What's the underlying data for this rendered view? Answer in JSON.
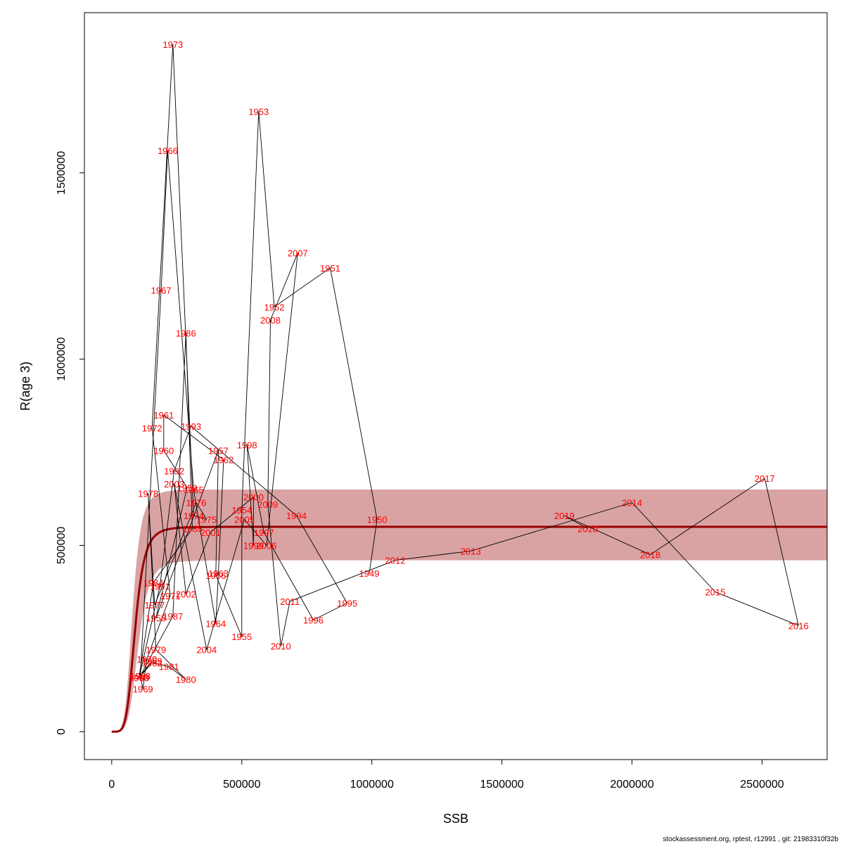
{
  "chart_data": {
    "type": "scatter",
    "title": "",
    "xlabel": "SSB",
    "ylabel": "R(age 3)",
    "xlim": [
      -105000,
      2750000
    ],
    "ylim": [
      -75000,
      1930000
    ],
    "xticks": [
      0,
      500000,
      1000000,
      1500000,
      2000000,
      2500000
    ],
    "yticks": [
      0,
      500000,
      1000000,
      1500000
    ],
    "xtick_labels": [
      "0",
      "500000",
      "1000000",
      "1500000",
      "2000000",
      "2500000"
    ],
    "ytick_labels": [
      "0",
      "500000",
      "1000000",
      "1500000"
    ],
    "grid": false,
    "legend": "none",
    "colors": {
      "points": "#ff0000",
      "path": "#000000",
      "fit": "#990000",
      "band": "#d9a3a3"
    },
    "points": [
      {
        "year": "1949",
        "x": 990000,
        "y": 425000
      },
      {
        "year": "1950",
        "x": 1020000,
        "y": 570000
      },
      {
        "year": "1951",
        "x": 840000,
        "y": 1245000
      },
      {
        "year": "1952",
        "x": 625000,
        "y": 1140000
      },
      {
        "year": "1953",
        "x": 565000,
        "y": 1665000
      },
      {
        "year": "1954",
        "x": 500000,
        "y": 595000
      },
      {
        "year": "1955",
        "x": 500000,
        "y": 255000
      },
      {
        "year": "1956",
        "x": 400000,
        "y": 420000
      },
      {
        "year": "1957",
        "x": 410000,
        "y": 755000
      },
      {
        "year": "1958",
        "x": 170000,
        "y": 305000
      },
      {
        "year": "1959",
        "x": 290000,
        "y": 655000
      },
      {
        "year": "1960",
        "x": 200000,
        "y": 755000
      },
      {
        "year": "1961",
        "x": 200000,
        "y": 850000
      },
      {
        "year": "1962",
        "x": 430000,
        "y": 730000
      },
      {
        "year": "1963",
        "x": 410000,
        "y": 425000
      },
      {
        "year": "1964",
        "x": 400000,
        "y": 290000
      },
      {
        "year": "1965",
        "x": 315000,
        "y": 650000
      },
      {
        "year": "1966",
        "x": 215000,
        "y": 1560000
      },
      {
        "year": "1967",
        "x": 190000,
        "y": 1185000
      },
      {
        "year": "1968",
        "x": 110000,
        "y": 150000
      },
      {
        "year": "1969",
        "x": 120000,
        "y": 115000
      },
      {
        "year": "1970",
        "x": 135000,
        "y": 195000
      },
      {
        "year": "1971",
        "x": 225000,
        "y": 365000
      },
      {
        "year": "1972",
        "x": 155000,
        "y": 815000
      },
      {
        "year": "1973",
        "x": 235000,
        "y": 1845000
      },
      {
        "year": "1974",
        "x": 315000,
        "y": 580000
      },
      {
        "year": "1975",
        "x": 365000,
        "y": 570000
      },
      {
        "year": "1976",
        "x": 325000,
        "y": 615000
      },
      {
        "year": "1977",
        "x": 165000,
        "y": 340000
      },
      {
        "year": "1978",
        "x": 140000,
        "y": 640000
      },
      {
        "year": "1979",
        "x": 170000,
        "y": 220000
      },
      {
        "year": "1980",
        "x": 285000,
        "y": 140000
      },
      {
        "year": "1981",
        "x": 220000,
        "y": 175000
      },
      {
        "year": "1982",
        "x": 155000,
        "y": 185000
      },
      {
        "year": "1983",
        "x": 105000,
        "y": 145000
      },
      {
        "year": "1984",
        "x": 160000,
        "y": 400000
      },
      {
        "year": "1985",
        "x": 310000,
        "y": 545000
      },
      {
        "year": "1986",
        "x": 285000,
        "y": 1070000
      },
      {
        "year": "1987",
        "x": 235000,
        "y": 310000
      },
      {
        "year": "1988",
        "x": 110000,
        "y": 150000
      },
      {
        "year": "1989",
        "x": 155000,
        "y": 190000
      },
      {
        "year": "1990",
        "x": 105000,
        "y": 145000
      },
      {
        "year": "1991",
        "x": 185000,
        "y": 390000
      },
      {
        "year": "1992",
        "x": 240000,
        "y": 700000
      },
      {
        "year": "1993",
        "x": 305000,
        "y": 820000
      },
      {
        "year": "1994",
        "x": 710000,
        "y": 580000
      },
      {
        "year": "1995",
        "x": 905000,
        "y": 345000
      },
      {
        "year": "1996",
        "x": 775000,
        "y": 300000
      },
      {
        "year": "1997",
        "x": 585000,
        "y": 535000
      },
      {
        "year": "1998",
        "x": 520000,
        "y": 770000
      },
      {
        "year": "1999",
        "x": 545000,
        "y": 500000
      },
      {
        "year": "2000",
        "x": 545000,
        "y": 630000
      },
      {
        "year": "2001",
        "x": 380000,
        "y": 535000
      },
      {
        "year": "2002",
        "x": 285000,
        "y": 370000
      },
      {
        "year": "2003",
        "x": 240000,
        "y": 665000
      },
      {
        "year": "2004",
        "x": 365000,
        "y": 220000
      },
      {
        "year": "2005",
        "x": 510000,
        "y": 570000
      },
      {
        "year": "2006",
        "x": 595000,
        "y": 500000
      },
      {
        "year": "2007",
        "x": 715000,
        "y": 1285000
      },
      {
        "year": "2008",
        "x": 610000,
        "y": 1105000
      },
      {
        "year": "2009",
        "x": 600000,
        "y": 610000
      },
      {
        "year": "2010",
        "x": 650000,
        "y": 230000
      },
      {
        "year": "2011",
        "x": 685000,
        "y": 350000
      },
      {
        "year": "2012",
        "x": 1090000,
        "y": 460000
      },
      {
        "year": "2013",
        "x": 1380000,
        "y": 485000
      },
      {
        "year": "2014",
        "x": 2000000,
        "y": 615000
      },
      {
        "year": "2015",
        "x": 2320000,
        "y": 375000
      },
      {
        "year": "2016",
        "x": 2640000,
        "y": 285000
      },
      {
        "year": "2017",
        "x": 2510000,
        "y": 680000
      },
      {
        "year": "2018",
        "x": 2070000,
        "y": 475000
      },
      {
        "year": "2019",
        "x": 1740000,
        "y": 580000
      },
      {
        "year": "2020",
        "x": 1830000,
        "y": 545000
      }
    ],
    "fit": {
      "model": "Beverton-Holt (fitted)",
      "asymptote": 550000,
      "band_upper": 650000,
      "band_lower": 460000
    }
  },
  "footer": {
    "text": "stockassessment.org, rptest, r12991 , git: 21983310f32b"
  }
}
